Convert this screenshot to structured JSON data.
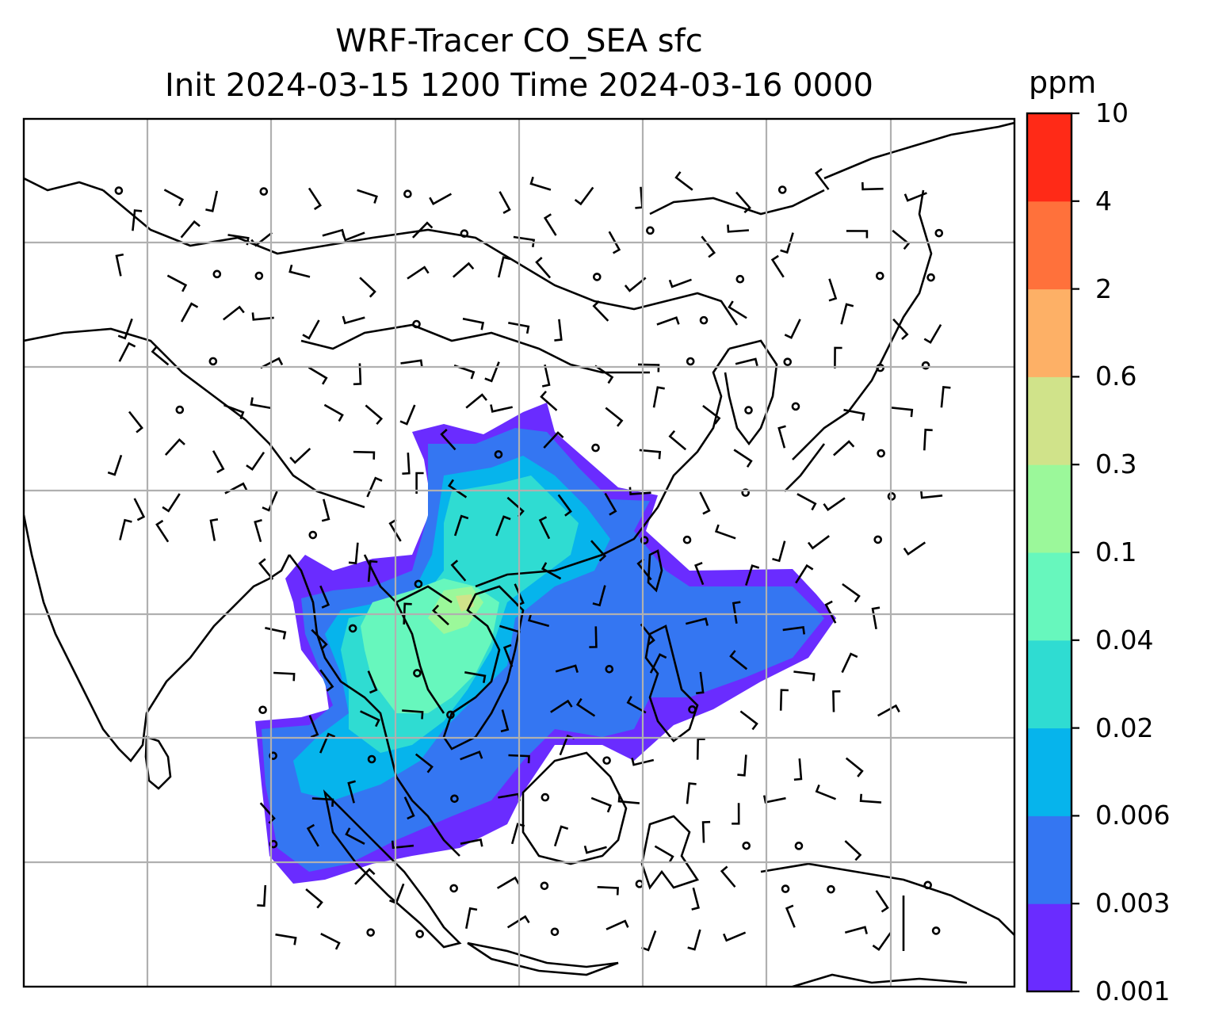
{
  "title_line1": "WRF-Tracer CO_SEA sfc",
  "title_line2": "Init 2024-03-15 1200 Time 2024-03-16 0000",
  "colorbar": {
    "unit": "ppm",
    "levels": [
      "0.001",
      "0.003",
      "0.006",
      "0.02",
      "0.04",
      "0.1",
      "0.3",
      "0.6",
      "2",
      "4",
      "10"
    ],
    "colors": [
      "#6a2cff",
      "#3476f2",
      "#06b4ec",
      "#2fdcd2",
      "#67f7bd",
      "#9bf89a",
      "#d0e38a",
      "#fdb066",
      "#ff713b",
      "#ff2a17"
    ]
  },
  "map": {
    "land_outline_color": "#000000",
    "gridline_color": "#b0b0b0",
    "wind_barbs": true,
    "calm_circles": true
  }
}
